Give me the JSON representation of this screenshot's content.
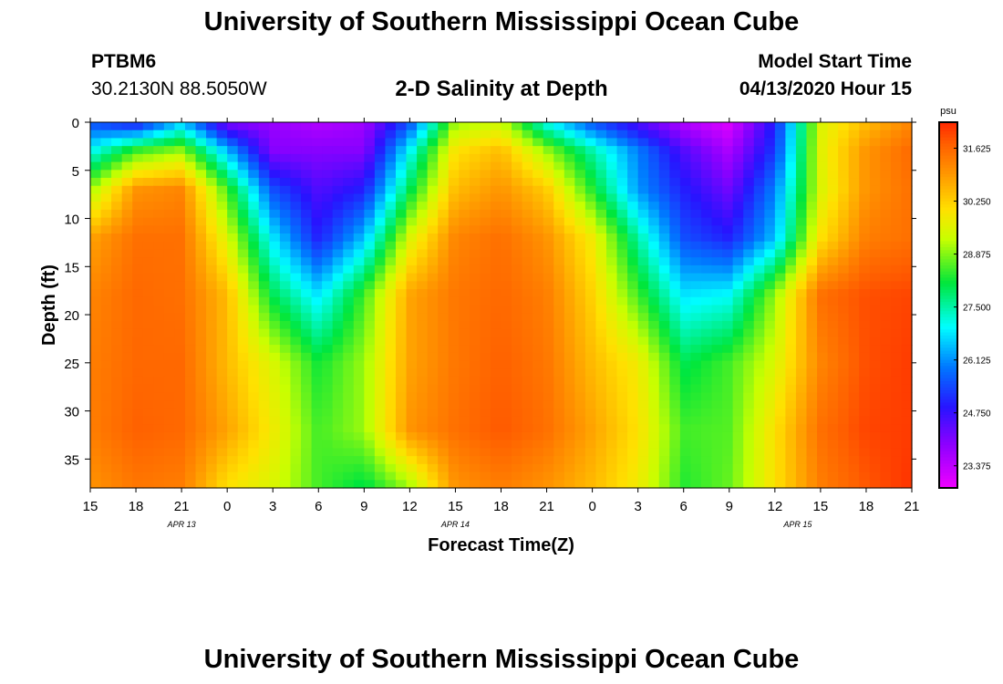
{
  "header": {
    "title": "University of Southern Mississippi Ocean Cube",
    "station": "PTBM6",
    "coordinates": "30.2130N 88.5050W",
    "chart_title": "2-D Salinity at Depth",
    "model_start_label": "Model Start Time",
    "model_start_value": "04/13/2020 Hour 15"
  },
  "footer": {
    "title": "University of Southern Mississippi Ocean Cube"
  },
  "chart_data": {
    "type": "heatmap",
    "title": "2-D Salinity at Depth",
    "xlabel": "Forecast Time(Z)",
    "ylabel": "Depth (ft)",
    "x_hours_from_start": [
      0,
      54
    ],
    "x_tick_labels": [
      "15",
      "18",
      "21",
      "0",
      "3",
      "6",
      "9",
      "12",
      "15",
      "18",
      "21",
      "0",
      "3",
      "6",
      "9",
      "12",
      "15",
      "18",
      "21"
    ],
    "x_tick_hours": [
      0,
      3,
      6,
      9,
      12,
      15,
      18,
      21,
      24,
      27,
      30,
      33,
      36,
      39,
      42,
      45,
      48,
      51,
      54
    ],
    "date_labels": [
      {
        "label": "APR 13",
        "hour": 6
      },
      {
        "label": "APR 14",
        "hour": 24
      },
      {
        "label": "APR 15",
        "hour": 46.5
      }
    ],
    "ylim": [
      0,
      38
    ],
    "y_ticks": [
      0,
      5,
      10,
      15,
      20,
      25,
      30,
      35
    ],
    "colorbar": {
      "unit": "psu",
      "range": [
        22.8,
        32.3
      ],
      "tick_values": [
        31.625,
        30.25,
        28.875,
        27.5,
        26.125,
        24.75,
        23.375
      ],
      "tick_labels": [
        "31.625",
        "30.250",
        "28.875",
        "27.500",
        "26.125",
        "24.750",
        "23.375"
      ]
    },
    "grid_hours": [
      0,
      3,
      6,
      9,
      12,
      15,
      18,
      21,
      24,
      27,
      30,
      33,
      36,
      39,
      42,
      45,
      48,
      51,
      54
    ],
    "grid_depths": [
      0,
      3,
      7,
      12,
      18,
      25,
      32,
      38
    ],
    "salinity_grid": [
      [
        25.5,
        24.8,
        26.5,
        24.0,
        23.8,
        23.5,
        23.7,
        25.5,
        29.0,
        29.3,
        27.0,
        25.5,
        24.5,
        23.5,
        23.0,
        25.0,
        29.5,
        30.5,
        31.2
      ],
      [
        27.0,
        28.5,
        29.0,
        26.5,
        24.0,
        24.0,
        24.0,
        27.0,
        30.0,
        30.5,
        29.0,
        27.5,
        26.0,
        24.5,
        23.6,
        25.3,
        29.6,
        31.0,
        31.6
      ],
      [
        29.0,
        31.0,
        31.2,
        28.5,
        25.5,
        24.5,
        25.0,
        28.0,
        30.5,
        31.0,
        30.3,
        28.3,
        26.2,
        25.0,
        24.2,
        26.0,
        29.5,
        31.0,
        31.5
      ],
      [
        30.8,
        31.5,
        31.5,
        29.5,
        26.8,
        25.0,
        26.5,
        29.5,
        31.2,
        31.5,
        31.0,
        29.8,
        27.5,
        25.5,
        25.0,
        26.5,
        30.0,
        31.3,
        31.5
      ],
      [
        31.2,
        31.6,
        31.5,
        30.5,
        28.0,
        26.8,
        28.5,
        30.8,
        31.4,
        31.6,
        31.3,
        30.2,
        28.5,
        26.8,
        27.0,
        29.0,
        31.5,
        31.9,
        32.0
      ],
      [
        31.3,
        31.6,
        31.6,
        30.5,
        29.5,
        28.2,
        29.0,
        30.8,
        31.4,
        31.7,
        31.4,
        30.5,
        29.8,
        28.0,
        28.5,
        29.5,
        31.2,
        31.9,
        32.1
      ],
      [
        31.3,
        31.7,
        31.6,
        30.8,
        29.8,
        28.5,
        29.0,
        31.0,
        31.5,
        31.8,
        31.5,
        30.8,
        30.0,
        28.5,
        28.6,
        30.0,
        31.5,
        32.0,
        32.1
      ],
      [
        31.0,
        31.4,
        31.3,
        30.0,
        29.5,
        28.5,
        28.0,
        29.0,
        31.0,
        31.3,
        31.0,
        30.5,
        29.8,
        28.3,
        28.7,
        30.0,
        31.3,
        31.8,
        32.2
      ]
    ]
  }
}
